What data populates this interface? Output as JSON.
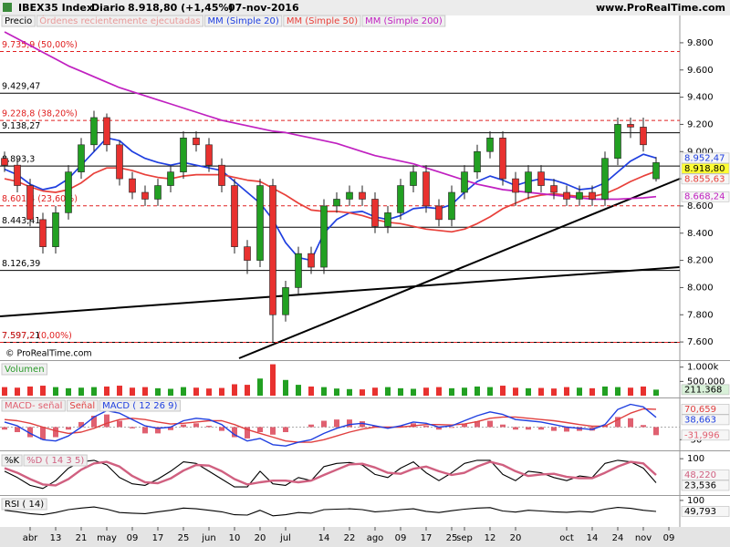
{
  "chart_data": [
    {
      "type": "candlestick",
      "title": "IBEX35 Index",
      "period": "Diario",
      "last": "8.918,80 (+1,45%)",
      "date": "07-nov-2016",
      "source": "www.ProRealTime.com",
      "footer": "© ProRealTime.com",
      "price_label": "Precio",
      "orders_label": "Órdenes recientemente ejecutadas",
      "categories": [
        null,
        null,
        "abr",
        null,
        "13",
        null,
        "21",
        null,
        "may",
        null,
        "09",
        null,
        "17",
        null,
        "25",
        null,
        "jun",
        null,
        "10",
        null,
        "20",
        null,
        "jul",
        null,
        null,
        "14",
        null,
        "22",
        null,
        "ago",
        null,
        "09",
        null,
        "17",
        null,
        "25",
        "sep",
        null,
        "12",
        null,
        "20",
        null,
        null,
        null,
        "oct",
        null,
        "14",
        null,
        "24",
        null,
        "nov",
        null,
        "09"
      ],
      "open": [
        8950,
        8900,
        8750,
        8500,
        8300,
        8550,
        8850,
        9050,
        9250,
        9050,
        8800,
        8700,
        8650,
        8750,
        8850,
        9100,
        9050,
        8900,
        8750,
        8300,
        8200,
        8750,
        7800,
        8000,
        8250,
        8150,
        8600,
        8650,
        8700,
        8650,
        8450,
        8550,
        8750,
        8850,
        8600,
        8500,
        8700,
        8850,
        9000,
        9100,
        8800,
        8700,
        8850,
        8750,
        8700,
        8650,
        8700,
        8650,
        8950,
        9200,
        9180,
        8800,
        null
      ],
      "high": [
        9000,
        8950,
        8800,
        8550,
        8600,
        8900,
        9100,
        9300,
        9280,
        9080,
        8850,
        8750,
        8800,
        8900,
        9150,
        9150,
        9100,
        8950,
        8800,
        8350,
        8800,
        8800,
        8050,
        8300,
        8300,
        8650,
        8700,
        8750,
        8750,
        8700,
        8600,
        8800,
        8900,
        8900,
        8650,
        8750,
        8900,
        9050,
        9150,
        9150,
        8850,
        8900,
        8900,
        8800,
        8750,
        8750,
        8750,
        9000,
        9250,
        9250,
        9250,
        8960,
        null
      ],
      "low": [
        8850,
        8700,
        8450,
        8250,
        8250,
        8500,
        8800,
        9000,
        9000,
        8750,
        8650,
        8600,
        8600,
        8700,
        8800,
        9000,
        8850,
        8700,
        8250,
        8100,
        8150,
        7600,
        7750,
        7950,
        8100,
        8100,
        8550,
        8600,
        8600,
        8400,
        8400,
        8500,
        8700,
        8550,
        8450,
        8450,
        8650,
        8800,
        8950,
        8750,
        8600,
        8650,
        8700,
        8650,
        8600,
        8600,
        8600,
        8600,
        8900,
        9100,
        9000,
        8780,
        null
      ],
      "close": [
        8900,
        8750,
        8500,
        8300,
        8550,
        8850,
        9050,
        9250,
        9050,
        8800,
        8700,
        8650,
        8750,
        8850,
        9100,
        9050,
        8900,
        8750,
        8300,
        8200,
        8750,
        7800,
        8000,
        8250,
        8150,
        8600,
        8650,
        8700,
        8650,
        8450,
        8550,
        8750,
        8850,
        8600,
        8500,
        8700,
        8850,
        9000,
        9100,
        8800,
        8700,
        8850,
        8750,
        8700,
        8650,
        8700,
        8650,
        8950,
        9200,
        9180,
        9050,
        8918.8,
        null
      ],
      "close_label": "8.918,80",
      "up_color": "#22a022",
      "down_color": "#e8312f",
      "series": [
        {
          "name": "MM (Simple 20)",
          "color": "#1f3fe0",
          "last_label": "8.952,47",
          "values": [
            8870,
            8830,
            8760,
            8720,
            8740,
            8800,
            8900,
            9000,
            9100,
            9080,
            9000,
            8950,
            8920,
            8900,
            8920,
            8900,
            8880,
            8860,
            8780,
            8700,
            8620,
            8500,
            8330,
            8220,
            8200,
            8400,
            8500,
            8550,
            8560,
            8520,
            8500,
            8530,
            8580,
            8590,
            8580,
            8610,
            8700,
            8780,
            8820,
            8790,
            8750,
            8780,
            8800,
            8790,
            8760,
            8720,
            8730,
            8770,
            8850,
            8930,
            8980,
            8952.47,
            null
          ]
        },
        {
          "name": "MM (Simple 50)",
          "color": "#e8403a",
          "last_label": "8.855,63",
          "values": [
            8800,
            8780,
            8740,
            8710,
            8700,
            8720,
            8770,
            8840,
            8880,
            8880,
            8860,
            8830,
            8810,
            8800,
            8820,
            8830,
            8830,
            8830,
            8810,
            8790,
            8780,
            8730,
            8680,
            8620,
            8570,
            8560,
            8560,
            8550,
            8530,
            8500,
            8480,
            8470,
            8450,
            8430,
            8420,
            8410,
            8430,
            8470,
            8520,
            8580,
            8620,
            8660,
            8680,
            8690,
            8680,
            8670,
            8670,
            8690,
            8730,
            8780,
            8820,
            8855.63,
            null
          ]
        },
        {
          "name": "MM (Simple 200)",
          "color": "#c020c0",
          "last_label": "8.668,24",
          "values": [
            9880,
            9830,
            9780,
            9730,
            9680,
            9630,
            9590,
            9550,
            9510,
            9470,
            9440,
            9410,
            9380,
            9350,
            9320,
            9290,
            9260,
            9230,
            9210,
            9190,
            9170,
            9150,
            9140,
            9120,
            9100,
            9080,
            9060,
            9030,
            9000,
            8970,
            8950,
            8930,
            8910,
            8880,
            8850,
            8820,
            8790,
            8760,
            8740,
            8720,
            8710,
            8700,
            8690,
            8680,
            8670,
            8660,
            8650,
            8650,
            8650,
            8655,
            8660,
            8668.24,
            null
          ]
        }
      ],
      "levels": [
        {
          "value": 9735.9,
          "label": "9.735,9 (50,00%)",
          "color": "#e02020",
          "dashed": true
        },
        {
          "value": 9429.47,
          "label": "9.429,47",
          "color": "#000000",
          "dashed": false
        },
        {
          "value": 9228.8,
          "label": "9.228,8 (38,20%)",
          "color": "#e02020",
          "dashed": true
        },
        {
          "value": 9138.27,
          "label": "9.138,27",
          "color": "#000000",
          "dashed": false
        },
        {
          "value": 8893.3,
          "label": "8.893,3",
          "color": "#000000",
          "dashed": false
        },
        {
          "value": 8601.4,
          "label": "8.601,4 (23,60%)",
          "color": "#e02020",
          "dashed": true
        },
        {
          "value": 8443.41,
          "label": "8.443,41",
          "color": "#000000",
          "dashed": false
        },
        {
          "value": 8126.39,
          "label": "8.126,39",
          "color": "#000000",
          "dashed": false
        },
        {
          "value": 7597.21,
          "label": "7.597,21",
          "color": "#000000",
          "dashed": false
        },
        {
          "value": 7597.2,
          "label": "7.597,2 (0,00%)",
          "color": "#e02020",
          "dashed": true
        }
      ],
      "ylim": [
        7480,
        9900
      ],
      "yticks": [
        {
          "value": 9800,
          "label": "9.800"
        },
        {
          "value": 9600,
          "label": "9.600"
        },
        {
          "value": 9400,
          "label": "9.400"
        },
        {
          "value": 9200,
          "label": "9.200"
        },
        {
          "value": 9000,
          "label": "9.000"
        },
        {
          "value": 8800,
          "label": "8.800"
        },
        {
          "value": 8600,
          "label": "8.600"
        },
        {
          "value": 8400,
          "label": "8.400"
        },
        {
          "value": 8200,
          "label": "8.200"
        },
        {
          "value": 8000,
          "label": "8.000"
        },
        {
          "value": 7800,
          "label": "7.800"
        },
        {
          "value": 7600,
          "label": "7.600"
        }
      ]
    },
    {
      "type": "bar",
      "title": "Volumen",
      "color": "#2a9a2a",
      "last_label": "211.368",
      "values": [
        300000,
        280000,
        320000,
        350000,
        300000,
        260000,
        280000,
        300000,
        320000,
        350000,
        280000,
        300000,
        260000,
        240000,
        300000,
        280000,
        250000,
        270000,
        400000,
        380000,
        600000,
        1100000,
        550000,
        380000,
        320000,
        300000,
        250000,
        230000,
        220000,
        280000,
        300000,
        260000,
        240000,
        280000,
        300000,
        260000,
        280000,
        320000,
        300000,
        350000,
        280000,
        260000,
        270000,
        250000,
        300000,
        280000,
        260000,
        320000,
        300000,
        280000,
        320000,
        211368,
        null
      ],
      "ylim": [
        0,
        1150000
      ],
      "yticks": [
        {
          "value": 1000000,
          "label": "1.000k"
        },
        {
          "value": 500000,
          "label": "500.000"
        }
      ]
    },
    {
      "type": "macd",
      "histogram": {
        "name": "MACD- señal",
        "color": "#e06070",
        "last_label": "-31,996",
        "values": [
          -10,
          -20,
          -40,
          -50,
          -40,
          -10,
          20,
          45,
          50,
          25,
          -5,
          -25,
          -25,
          -12,
          10,
          15,
          5,
          -15,
          -40,
          -45,
          -20,
          -30,
          -20,
          0,
          10,
          25,
          30,
          30,
          23,
          5,
          -5,
          5,
          15,
          5,
          -10,
          -3,
          13,
          23,
          25,
          10,
          -10,
          -10,
          -10,
          -15,
          -18,
          -15,
          -14,
          6,
          40,
          35,
          8,
          -31.996,
          null
        ]
      },
      "series": [
        {
          "name": "Señal",
          "color": "#e04040",
          "last_label": "70,659",
          "values": [
            30,
            25,
            15,
            0,
            -15,
            -25,
            -20,
            -5,
            15,
            30,
            35,
            30,
            20,
            12,
            15,
            20,
            25,
            25,
            10,
            -10,
            -25,
            -40,
            -55,
            -60,
            -60,
            -50,
            -35,
            -20,
            -8,
            0,
            0,
            0,
            5,
            10,
            10,
            8,
            12,
            22,
            35,
            40,
            40,
            35,
            30,
            25,
            18,
            10,
            4,
            4,
            30,
            55,
            72,
            70.659,
            null
          ]
        },
        {
          "name": "MACD ( 12 26 9)",
          "color": "#2040e0",
          "last_label": "38,663",
          "values": [
            20,
            5,
            -25,
            -50,
            -55,
            -35,
            0,
            40,
            65,
            55,
            30,
            5,
            -5,
            0,
            25,
            35,
            30,
            10,
            -30,
            -55,
            -45,
            -70,
            -75,
            -60,
            -50,
            -25,
            -5,
            10,
            15,
            5,
            -5,
            5,
            20,
            15,
            0,
            5,
            25,
            45,
            60,
            50,
            30,
            25,
            20,
            10,
            0,
            -5,
            -10,
            10,
            70,
            90,
            80,
            38.663,
            null
          ]
        }
      ],
      "ylim": [
        -85,
        110
      ],
      "yticks": [
        -50
      ]
    },
    {
      "type": "line",
      "series": [
        {
          "name": "%K",
          "color": "#000000",
          "last_label": "23,536",
          "values": [
            60,
            40,
            15,
            5,
            30,
            70,
            90,
            95,
            80,
            40,
            20,
            15,
            35,
            60,
            90,
            85,
            60,
            35,
            10,
            10,
            60,
            20,
            15,
            40,
            30,
            75,
            85,
            88,
            80,
            50,
            40,
            70,
            90,
            55,
            30,
            55,
            85,
            95,
            95,
            50,
            30,
            60,
            55,
            40,
            30,
            45,
            40,
            85,
            95,
            90,
            70,
            23.536,
            null
          ]
        },
        {
          "name": "%D ( 14 3 5)",
          "color": "#d06080",
          "last_label": "48,220",
          "values": [
            70,
            55,
            35,
            18,
            15,
            35,
            65,
            85,
            90,
            75,
            45,
            25,
            22,
            37,
            62,
            80,
            78,
            60,
            35,
            18,
            25,
            30,
            30,
            25,
            30,
            48,
            65,
            82,
            84,
            72,
            55,
            52,
            68,
            75,
            60,
            48,
            55,
            75,
            90,
            80,
            60,
            45,
            50,
            52,
            42,
            38,
            38,
            55,
            75,
            90,
            85,
            48.22,
            null
          ]
        }
      ],
      "ylim": [
        -10,
        115
      ],
      "yticks": [
        100
      ]
    },
    {
      "type": "line",
      "series": [
        {
          "name": "RSI ( 14)",
          "color": "#000000",
          "last_label": "49,793",
          "values": [
            55,
            48,
            40,
            35,
            45,
            58,
            65,
            70,
            60,
            45,
            42,
            40,
            48,
            55,
            65,
            62,
            55,
            48,
            35,
            33,
            55,
            30,
            35,
            45,
            42,
            58,
            60,
            62,
            58,
            48,
            52,
            58,
            62,
            50,
            45,
            53,
            60,
            65,
            67,
            52,
            47,
            55,
            52,
            48,
            46,
            50,
            47,
            60,
            68,
            64,
            55,
            49.793,
            null
          ]
        }
      ],
      "ylim": [
        0,
        112
      ],
      "yticks": [
        100
      ]
    }
  ]
}
